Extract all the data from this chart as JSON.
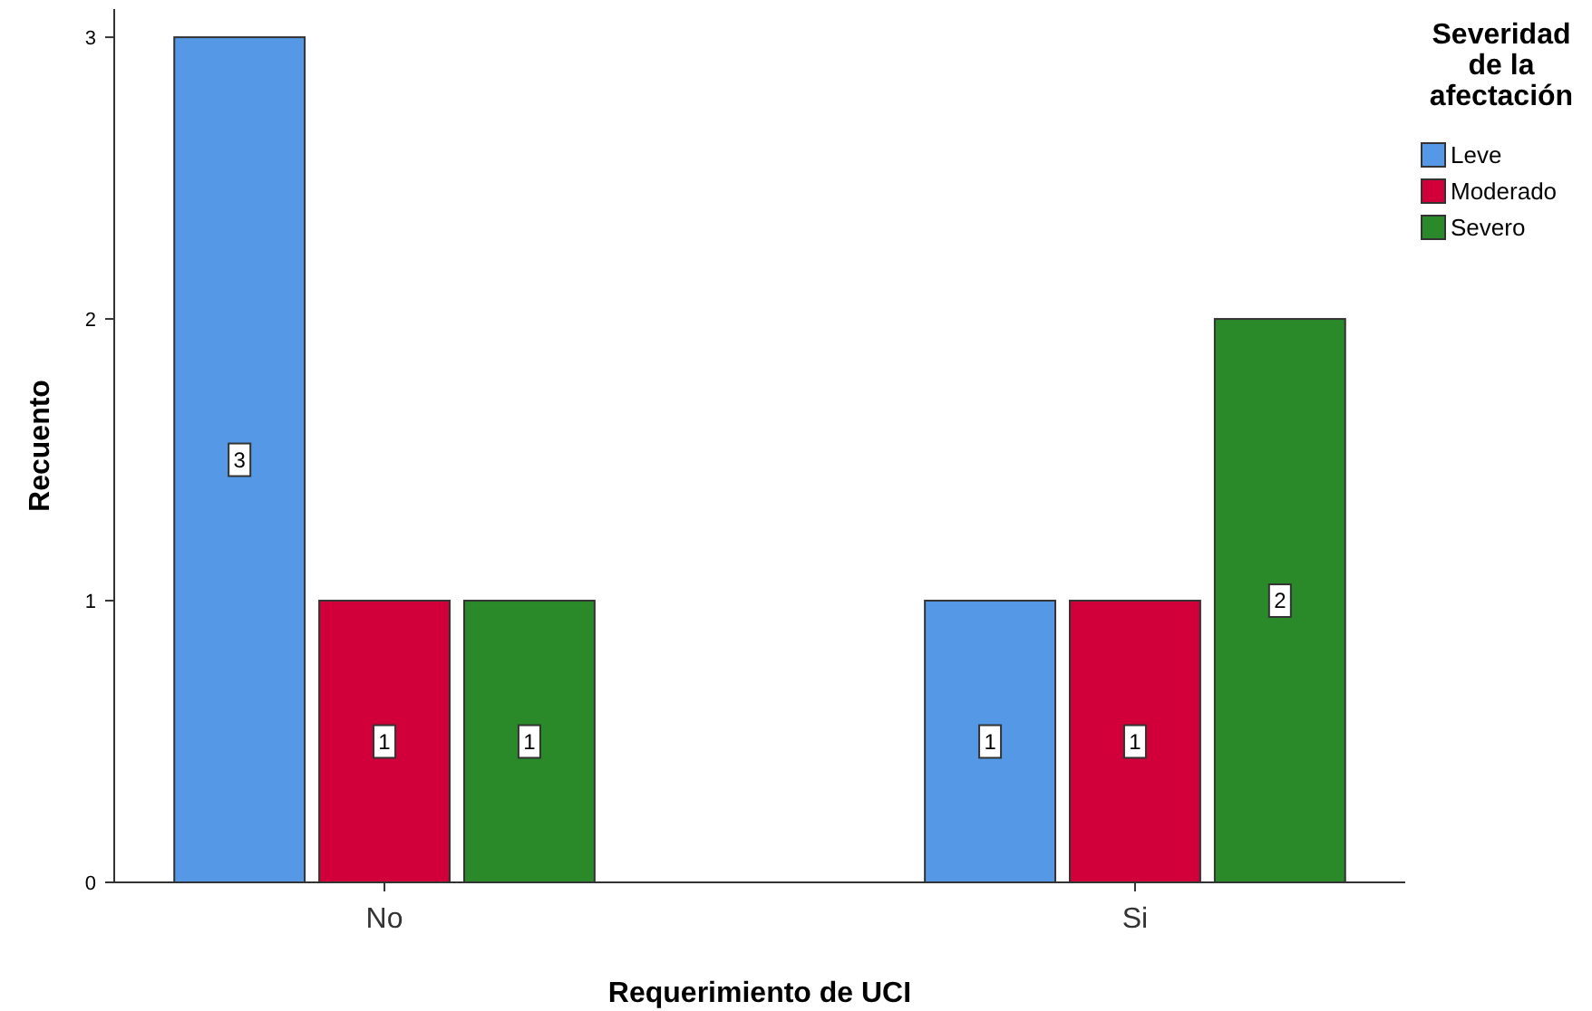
{
  "chart_data": {
    "type": "bar",
    "xlabel": "Requerimiento de UCI",
    "ylabel": "Recuento",
    "legend_title": "Severidad de la afectación",
    "legend": "top right",
    "data_labels": true,
    "grid": false,
    "categories": [
      "No",
      "Si"
    ],
    "series": [
      {
        "name": "Leve",
        "color": "#5599e6",
        "values": [
          3,
          1
        ]
      },
      {
        "name": "Moderado",
        "color": "#d2003a",
        "values": [
          1,
          1
        ]
      },
      {
        "name": "Severo",
        "color": "#2a8a2a",
        "values": [
          1,
          2
        ]
      }
    ],
    "ylim": [
      0,
      3.1
    ],
    "yticks": [
      0,
      1,
      2,
      3
    ]
  }
}
